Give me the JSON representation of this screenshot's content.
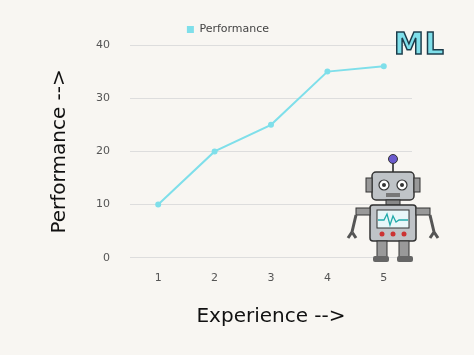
{
  "chart_data": {
    "type": "line",
    "annotation": "ML",
    "x_label": "Experience -->",
    "y_label": "Performance -->",
    "categories": [
      1,
      2,
      3,
      4,
      5
    ],
    "series": [
      {
        "name": "Performance",
        "color": "#7fdfea",
        "values": [
          10,
          20,
          25,
          35,
          36
        ]
      }
    ],
    "ylim": [
      0,
      40
    ],
    "yticks": [
      0,
      10,
      20,
      30,
      40
    ],
    "grid": true,
    "legend": "top"
  }
}
